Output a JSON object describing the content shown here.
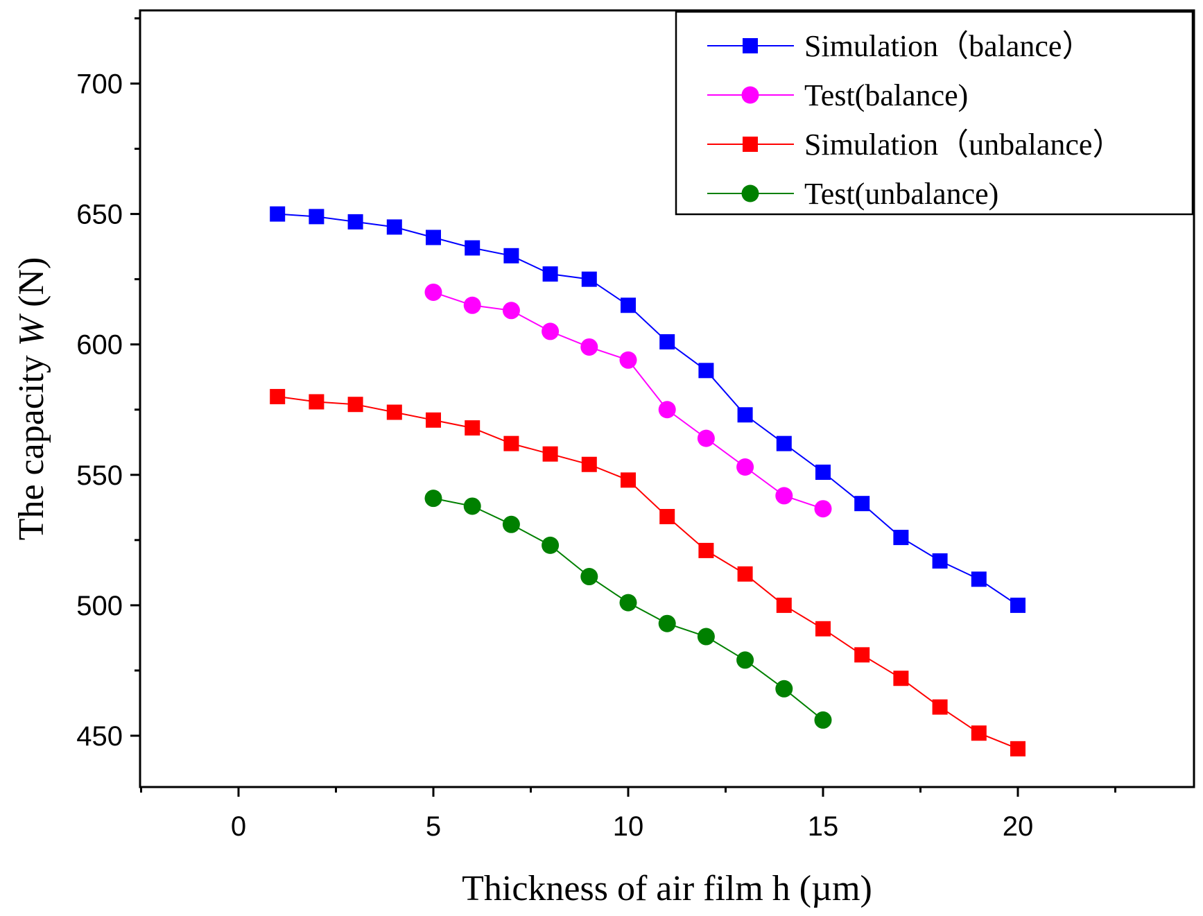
{
  "chart_data": {
    "type": "line",
    "xlabel": "Thickness of air film h (µm)",
    "ylabel_prefix": "The capacity ",
    "ylabel_var": "W",
    "ylabel_suffix": " (N)",
    "xlim": [
      -2.5,
      24.5
    ],
    "ylim": [
      430,
      725
    ],
    "xticks": [
      0,
      5,
      10,
      15,
      20
    ],
    "xticks_minor": [
      -2.5,
      2.5,
      7.5,
      12.5,
      17.5,
      22.5
    ],
    "yticks": [
      450,
      500,
      550,
      600,
      650,
      700
    ],
    "yticks_minor": [
      475,
      525,
      575,
      625,
      675,
      725
    ],
    "grid": false,
    "legend_position": "top-right",
    "series": [
      {
        "name": "Simulation（balance）",
        "color": "#0000ff",
        "marker": "square",
        "x": [
          1,
          2,
          3,
          4,
          5,
          6,
          7,
          8,
          9,
          10,
          11,
          12,
          13,
          14,
          15,
          16,
          17,
          18,
          19,
          20
        ],
        "y": [
          650,
          649,
          647,
          645,
          641,
          637,
          634,
          627,
          625,
          615,
          601,
          590,
          573,
          562,
          551,
          539,
          526,
          517,
          510,
          500
        ]
      },
      {
        "name": "Test(balance)",
        "color": "#ff00ff",
        "marker": "circle",
        "x": [
          5,
          6,
          7,
          8,
          9,
          10,
          11,
          12,
          13,
          14,
          15
        ],
        "y": [
          620,
          615,
          613,
          605,
          599,
          594,
          575,
          564,
          553,
          542,
          537
        ]
      },
      {
        "name": "Simulation（unbalance）",
        "color": "#ff0000",
        "marker": "square",
        "x": [
          1,
          2,
          3,
          4,
          5,
          6,
          7,
          8,
          9,
          10,
          11,
          12,
          13,
          14,
          15,
          16,
          17,
          18,
          19,
          20
        ],
        "y": [
          580,
          578,
          577,
          574,
          571,
          568,
          562,
          558,
          554,
          548,
          534,
          521,
          512,
          500,
          491,
          481,
          472,
          461,
          451,
          445
        ]
      },
      {
        "name": "Test(unbalance)",
        "color": "#008000",
        "marker": "circle",
        "x": [
          5,
          6,
          7,
          8,
          9,
          10,
          11,
          12,
          13,
          14,
          15
        ],
        "y": [
          541,
          538,
          531,
          523,
          511,
          501,
          493,
          488,
          479,
          468,
          456
        ]
      }
    ]
  }
}
